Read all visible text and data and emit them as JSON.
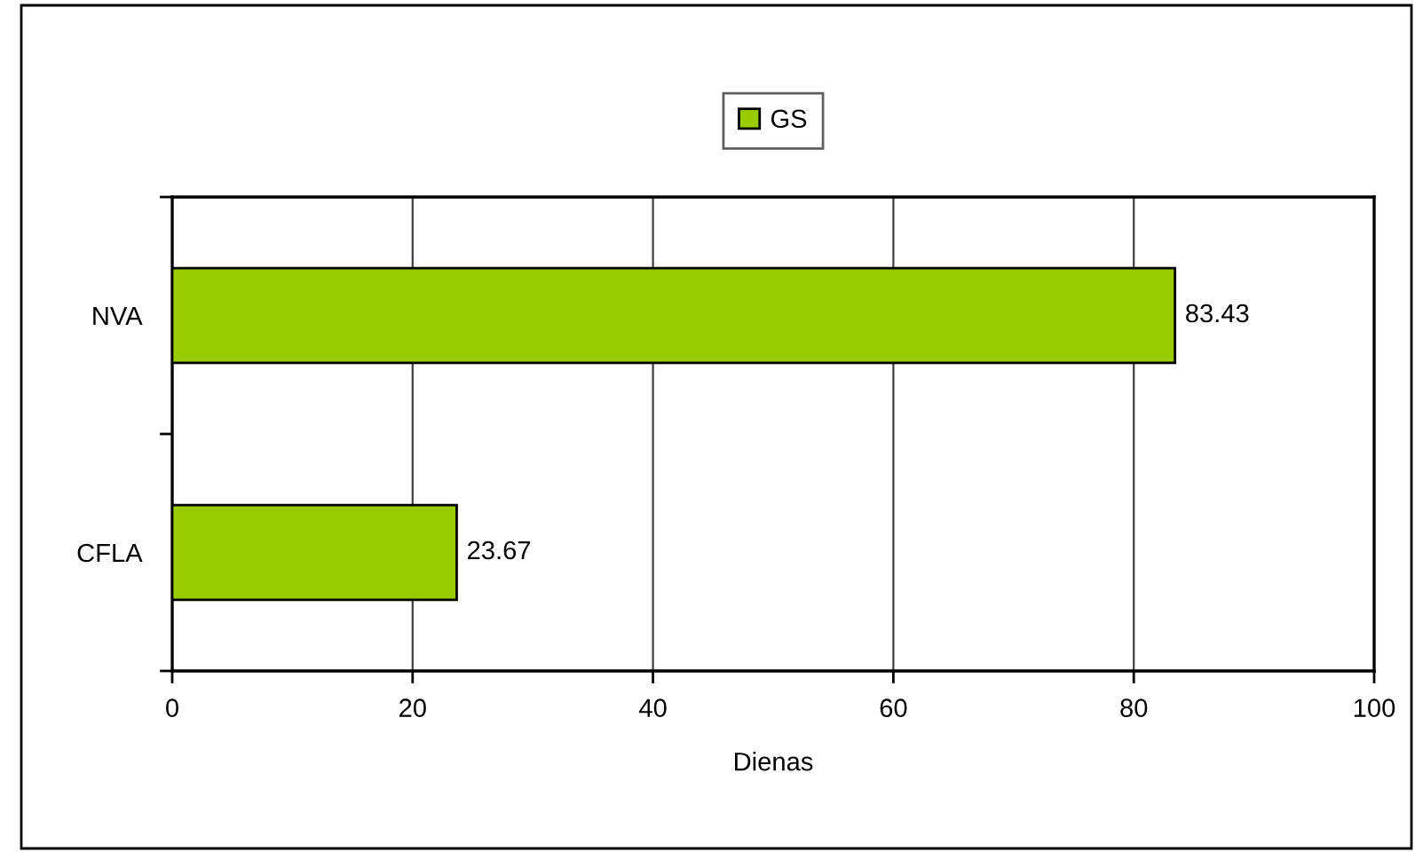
{
  "chart_data": {
    "type": "bar",
    "orientation": "horizontal",
    "categories": [
      "NVA",
      "CFLA"
    ],
    "series": [
      {
        "name": "GS",
        "color": "#99cc00",
        "values": [
          83.43,
          23.67
        ]
      }
    ],
    "xlabel": "Dienas",
    "xlim": [
      0,
      100
    ],
    "xticks": [
      0,
      20,
      40,
      60,
      80,
      100
    ],
    "grid": "x",
    "legend": "top",
    "data_labels": true
  }
}
